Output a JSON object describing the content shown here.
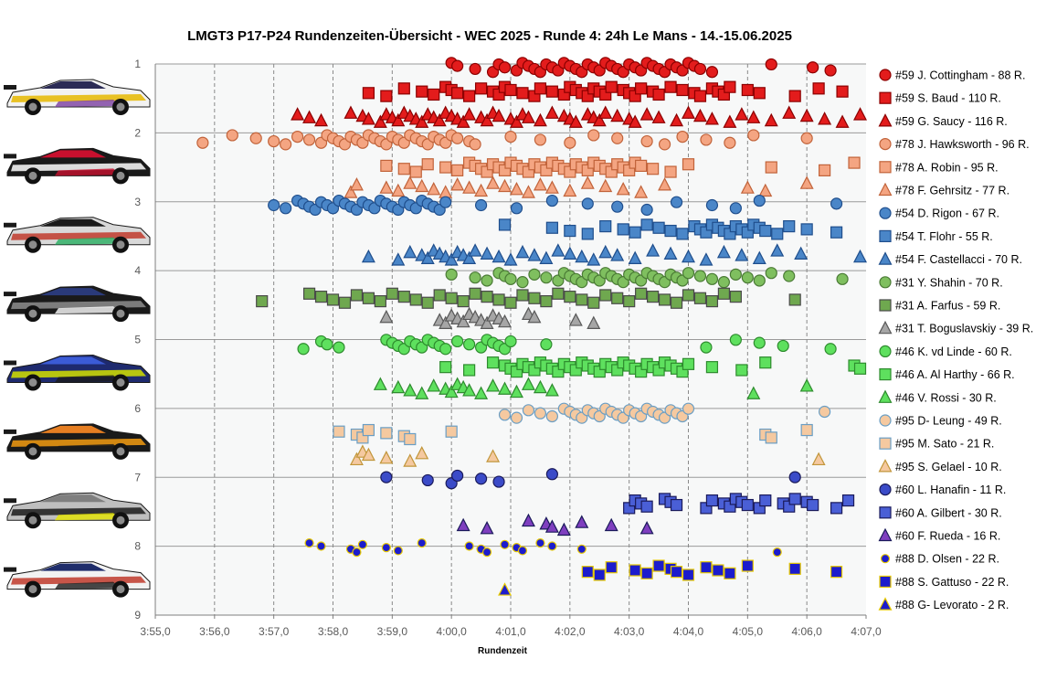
{
  "chart_data": {
    "type": "scatter",
    "title": "LMGT3 P17-P24 Rundenzeiten-Übersicht - WEC 2025 - Runde 4: 24h Le Mans - 14.-15.06.2025",
    "xlabel": "Rundenzeit",
    "ylabel": "",
    "x_tick_labels": [
      "3:55,0",
      "3:56,0",
      "3:57,0",
      "3:58,0",
      "3:59,0",
      "4:00,0",
      "4:01,0",
      "4:02,0",
      "4:03,0",
      "4:04,0",
      "4:05,0",
      "4:06,0",
      "4:07,0"
    ],
    "x_unit": "seconds",
    "xlim": [
      235,
      247
    ],
    "ylim": [
      1,
      9
    ],
    "y_ticks": [
      1,
      2,
      3,
      4,
      5,
      6,
      7,
      8,
      9
    ],
    "grid": {
      "vertical": "dashed",
      "horizontal": "solid"
    },
    "legend_position": "right",
    "cars": [
      {
        "number": "#59",
        "livery": [
          "#f2f2f2",
          "#2b2b55",
          "#e6b800",
          "#7a3fa0"
        ]
      },
      {
        "number": "#78",
        "livery": [
          "#1a1a1a",
          "#c8102e",
          "#ffffff",
          "#c8102e"
        ]
      },
      {
        "number": "#54",
        "livery": [
          "#d9d9d9",
          "#1a1a1a",
          "#c0392b",
          "#27ae60"
        ]
      },
      {
        "number": "#31",
        "livery": [
          "#1a1a1a",
          "#2a3a7a",
          "#8e8e8e",
          "#ffffff"
        ]
      },
      {
        "number": "#46",
        "livery": [
          "#1e2a6e",
          "#3b5bd6",
          "#d4e000",
          "#1a1a1a"
        ]
      },
      {
        "number": "#95",
        "livery": [
          "#1a1a1a",
          "#e67e22",
          "#f39c12",
          "#1a1a1a"
        ]
      },
      {
        "number": "#60",
        "livery": [
          "#bfbfbf",
          "#7f7f7f",
          "#1a1a1a",
          "#e6e600"
        ]
      },
      {
        "number": "#88",
        "livery": [
          "#f2f2f2",
          "#1f2d6b",
          "#c0392b",
          "#1a1a1a"
        ]
      }
    ],
    "series": [
      {
        "name": "#59 J. Cottingham - 88 R.",
        "marker": "circle",
        "fill": "#e31c1c",
        "stroke": "#8b0000",
        "y": 1.05,
        "x": [
          240.0,
          240.1,
          240.4,
          240.7,
          240.8,
          240.9,
          241.1,
          241.2,
          241.3,
          241.4,
          241.5,
          241.6,
          241.7,
          241.8,
          241.9,
          242.0,
          242.1,
          242.2,
          242.3,
          242.4,
          242.5,
          242.6,
          242.7,
          242.8,
          242.9,
          243.0,
          243.1,
          243.2,
          243.3,
          243.4,
          243.5,
          243.6,
          243.7,
          243.8,
          243.9,
          244.0,
          244.1,
          244.2,
          244.4,
          245.4,
          246.1,
          246.4
        ]
      },
      {
        "name": "#59 S. Baud - 110 R.",
        "marker": "square",
        "fill": "#e31c1c",
        "stroke": "#8b0000",
        "y": 1.4,
        "x": [
          238.6,
          238.9,
          239.2,
          239.5,
          239.7,
          239.9,
          240.0,
          240.1,
          240.3,
          240.5,
          240.7,
          240.8,
          240.9,
          241.0,
          241.2,
          241.4,
          241.5,
          241.7,
          241.9,
          242.0,
          242.1,
          242.2,
          242.3,
          242.4,
          242.5,
          242.6,
          242.7,
          242.9,
          243.0,
          243.1,
          243.2,
          243.4,
          243.5,
          243.7,
          243.9,
          244.1,
          244.2,
          244.4,
          244.5,
          244.6,
          244.7,
          245.0,
          245.2,
          245.8,
          246.2,
          246.6
        ]
      },
      {
        "name": "#59 G. Saucy - 116 R.",
        "marker": "triangle",
        "fill": "#e31c1c",
        "stroke": "#8b0000",
        "y": 1.78,
        "x": [
          237.4,
          237.6,
          237.8,
          238.3,
          238.5,
          238.6,
          238.8,
          238.9,
          239.0,
          239.1,
          239.2,
          239.3,
          239.4,
          239.5,
          239.6,
          239.7,
          239.8,
          239.9,
          240.0,
          240.1,
          240.2,
          240.3,
          240.5,
          240.6,
          240.7,
          240.8,
          241.0,
          241.1,
          241.2,
          241.3,
          241.5,
          241.7,
          241.9,
          242.0,
          242.1,
          242.3,
          242.4,
          242.5,
          242.6,
          242.8,
          243.0,
          243.1,
          243.3,
          243.5,
          243.8,
          244.0,
          244.2,
          244.4,
          244.7,
          244.9,
          245.1,
          245.4,
          245.7,
          246.0,
          246.3,
          246.6,
          246.9
        ]
      },
      {
        "name": "#78 J. Hawksworth - 96 R.",
        "marker": "circle",
        "fill": "#f4a582",
        "stroke": "#c1633a",
        "y": 2.1,
        "x": [
          235.8,
          236.3,
          236.7,
          237.0,
          237.2,
          237.4,
          237.6,
          237.8,
          237.9,
          238.0,
          238.1,
          238.2,
          238.3,
          238.4,
          238.5,
          238.6,
          238.7,
          238.8,
          238.9,
          239.0,
          239.1,
          239.2,
          239.3,
          239.4,
          239.5,
          239.6,
          239.7,
          239.8,
          239.9,
          240.0,
          240.1,
          240.3,
          240.4,
          241.0,
          241.5,
          242.0,
          242.4,
          242.8,
          243.3,
          243.6,
          243.9,
          244.3,
          244.7,
          245.1,
          246.0
        ]
      },
      {
        "name": "#78 A. Robin - 95 R.",
        "marker": "square",
        "fill": "#f4a582",
        "stroke": "#c1633a",
        "y": 2.5,
        "x": [
          238.9,
          239.2,
          239.4,
          239.6,
          239.9,
          240.1,
          240.3,
          240.4,
          240.5,
          240.6,
          240.7,
          240.8,
          240.9,
          241.0,
          241.1,
          241.2,
          241.3,
          241.4,
          241.5,
          241.6,
          241.7,
          241.8,
          241.9,
          242.0,
          242.1,
          242.2,
          242.3,
          242.4,
          242.5,
          242.6,
          242.7,
          242.8,
          242.9,
          243.0,
          243.1,
          243.2,
          243.4,
          243.7,
          244.0,
          245.4,
          246.3,
          246.8
        ]
      },
      {
        "name": "#78 F. Gehrsitz - 77 R.",
        "marker": "triangle",
        "fill": "#f4a582",
        "stroke": "#c1633a",
        "y": 2.8,
        "x": [
          238.3,
          238.4,
          238.9,
          239.1,
          239.3,
          239.5,
          239.7,
          239.9,
          240.1,
          240.3,
          240.5,
          240.7,
          240.9,
          241.1,
          241.3,
          241.5,
          241.7,
          242.0,
          242.3,
          242.6,
          242.9,
          243.2,
          243.6,
          245.0,
          245.3,
          246.0
        ]
      },
      {
        "name": "#54 D. Rigon - 67 R.",
        "marker": "circle",
        "fill": "#4a86c8",
        "stroke": "#1f4e8c",
        "y": 3.05,
        "x": [
          237.0,
          237.2,
          237.4,
          237.5,
          237.6,
          237.7,
          237.8,
          237.9,
          238.0,
          238.1,
          238.2,
          238.3,
          238.4,
          238.5,
          238.6,
          238.7,
          238.8,
          238.9,
          239.0,
          239.1,
          239.2,
          239.3,
          239.4,
          239.5,
          239.6,
          239.7,
          239.8,
          239.9,
          240.5,
          241.1,
          241.7,
          242.3,
          242.8,
          243.3,
          243.8,
          244.4,
          244.8,
          245.2,
          246.5
        ]
      },
      {
        "name": "#54 T. Flohr - 55 R.",
        "marker": "square",
        "fill": "#4a86c8",
        "stroke": "#1f4e8c",
        "y": 3.4,
        "x": [
          240.9,
          241.7,
          242.0,
          242.3,
          242.6,
          242.9,
          243.1,
          243.3,
          243.5,
          243.7,
          243.9,
          244.1,
          244.2,
          244.3,
          244.4,
          244.5,
          244.6,
          244.7,
          244.8,
          244.9,
          245.0,
          245.1,
          245.2,
          245.3,
          245.5,
          245.7,
          246.0,
          246.5
        ]
      },
      {
        "name": "#54 F. Castellacci - 70 R.",
        "marker": "triangle",
        "fill": "#4a86c8",
        "stroke": "#1f4e8c",
        "y": 3.78,
        "x": [
          238.6,
          239.1,
          239.3,
          239.5,
          239.6,
          239.7,
          239.8,
          239.9,
          240.0,
          240.1,
          240.2,
          240.3,
          240.4,
          240.6,
          240.8,
          241.0,
          241.2,
          241.4,
          241.6,
          241.8,
          242.0,
          242.2,
          242.4,
          242.6,
          242.8,
          243.1,
          243.4,
          243.7,
          244.0,
          244.3,
          244.6,
          244.9,
          245.2,
          245.5,
          245.9,
          246.9
        ]
      },
      {
        "name": "#31 Y. Shahin - 70 R.",
        "marker": "circle",
        "fill": "#7fbf5f",
        "stroke": "#4a7a35",
        "y": 4.1,
        "x": [
          240.0,
          240.4,
          240.6,
          240.8,
          240.9,
          241.0,
          241.2,
          241.4,
          241.6,
          241.8,
          241.9,
          242.0,
          242.1,
          242.2,
          242.3,
          242.4,
          242.5,
          242.6,
          242.7,
          242.8,
          242.9,
          243.0,
          243.1,
          243.2,
          243.3,
          243.4,
          243.5,
          243.6,
          243.7,
          243.8,
          243.9,
          244.0,
          244.2,
          244.4,
          244.6,
          244.8,
          245.0,
          245.2,
          245.4,
          245.7,
          246.6
        ]
      },
      {
        "name": "#31 A. Farfus - 59 R.",
        "marker": "square",
        "fill": "#6fa84f",
        "stroke": "#4a4a4a",
        "y": 4.4,
        "x": [
          236.8,
          237.6,
          237.8,
          238.0,
          238.2,
          238.4,
          238.6,
          238.8,
          239.0,
          239.2,
          239.4,
          239.6,
          239.8,
          240.0,
          240.2,
          240.4,
          240.6,
          240.8,
          241.0,
          241.2,
          241.4,
          241.6,
          241.8,
          242.0,
          242.2,
          242.4,
          242.6,
          242.8,
          243.0,
          243.2,
          243.4,
          243.6,
          243.8,
          244.0,
          244.2,
          244.4,
          244.6,
          244.8,
          245.8
        ]
      },
      {
        "name": "#31 T. Boguslavskiy - 39 R.",
        "marker": "triangle",
        "fill": "#a6a6a6",
        "stroke": "#595959",
        "y": 4.7,
        "x": [
          238.9,
          239.8,
          239.9,
          240.0,
          240.1,
          240.2,
          240.3,
          240.4,
          240.5,
          240.6,
          240.7,
          240.8,
          240.9,
          241.3,
          241.4,
          242.1,
          242.4
        ]
      },
      {
        "name": "#46 K. vd Linde - 60 R.",
        "marker": "circle",
        "fill": "#5ee05e",
        "stroke": "#2e8b2e",
        "y": 5.07,
        "x": [
          237.5,
          237.8,
          237.9,
          238.1,
          238.9,
          239.0,
          239.1,
          239.2,
          239.3,
          239.4,
          239.5,
          239.6,
          239.7,
          239.8,
          239.9,
          240.1,
          240.3,
          240.5,
          240.6,
          240.7,
          240.8,
          240.9,
          241.0,
          241.6,
          244.3,
          244.8,
          245.2,
          245.6,
          246.4
        ]
      },
      {
        "name": "#46 A. Al Harthy - 66 R.",
        "marker": "square",
        "fill": "#5ee05e",
        "stroke": "#2e8b2e",
        "y": 5.4,
        "x": [
          239.9,
          240.3,
          240.7,
          240.9,
          241.0,
          241.1,
          241.2,
          241.3,
          241.4,
          241.5,
          241.6,
          241.7,
          241.8,
          241.9,
          242.0,
          242.1,
          242.2,
          242.3,
          242.4,
          242.5,
          242.6,
          242.7,
          242.8,
          242.9,
          243.0,
          243.1,
          243.2,
          243.3,
          243.4,
          243.5,
          243.6,
          243.7,
          243.8,
          243.9,
          244.0,
          244.4,
          244.9,
          245.3,
          246.8,
          246.9
        ]
      },
      {
        "name": "#46 V. Rossi - 30 R.",
        "marker": "triangle",
        "fill": "#5ee05e",
        "stroke": "#2e8b2e",
        "y": 5.72,
        "x": [
          238.8,
          239.1,
          239.3,
          239.5,
          239.7,
          239.9,
          240.0,
          240.1,
          240.2,
          240.3,
          240.5,
          240.7,
          240.9,
          241.1,
          241.3,
          241.5,
          241.7,
          245.1,
          246.0
        ]
      },
      {
        "name": "#95 D- Leung - 49 R.",
        "marker": "circle",
        "fill": "#f5c9a0",
        "stroke": "#6a9ec4",
        "y": 6.07,
        "x": [
          240.9,
          241.1,
          241.3,
          241.5,
          241.7,
          241.9,
          242.0,
          242.1,
          242.2,
          242.3,
          242.4,
          242.5,
          242.6,
          242.7,
          242.8,
          242.9,
          243.0,
          243.1,
          243.2,
          243.3,
          243.4,
          243.5,
          243.6,
          243.7,
          243.8,
          243.9,
          244.0,
          246.3
        ]
      },
      {
        "name": "#95 M. Sato - 21 R.",
        "marker": "square",
        "fill": "#f5c9a0",
        "stroke": "#6a9ec4",
        "y": 6.38,
        "x": [
          238.1,
          238.4,
          238.5,
          238.6,
          238.9,
          239.2,
          239.3,
          240.0,
          245.3,
          245.4,
          246.0
        ]
      },
      {
        "name": "#95 S. Gelael - 10 R.",
        "marker": "triangle",
        "fill": "#f5c9a0",
        "stroke": "#c1963a",
        "y": 6.7,
        "x": [
          238.4,
          238.5,
          238.6,
          238.9,
          239.3,
          239.5,
          240.7,
          246.2
        ]
      },
      {
        "name": "#60 L. Hanafin - 11 R.",
        "marker": "circle",
        "fill": "#3b4bc8",
        "stroke": "#1a1a5a",
        "y": 7.02,
        "x": [
          238.9,
          239.6,
          240.0,
          240.1,
          240.5,
          240.8,
          241.7,
          245.8
        ]
      },
      {
        "name": "#60 A. Gilbert - 30 R.",
        "marker": "square",
        "fill": "#4a5fd6",
        "stroke": "#1a1a5a",
        "y": 7.38,
        "x": [
          243.0,
          243.1,
          243.2,
          243.3,
          243.6,
          243.7,
          243.8,
          244.3,
          244.4,
          244.6,
          244.7,
          244.8,
          244.9,
          245.0,
          245.2,
          245.3,
          245.6,
          245.7,
          245.8,
          246.0,
          246.1,
          246.5,
          246.7
        ]
      },
      {
        "name": "#60 F. Rueda - 16 R.",
        "marker": "triangle",
        "fill": "#7f3fbf",
        "stroke": "#1a1a5a",
        "y": 7.7,
        "x": [
          240.2,
          240.6,
          241.3,
          241.6,
          241.7,
          241.9,
          242.2,
          242.7,
          243.3
        ]
      },
      {
        "name": "#88 D. Olsen - 22 R.",
        "marker": "dot",
        "fill": "#1c1ccc",
        "stroke": "#e6c800",
        "y": 8.02,
        "x": [
          237.6,
          237.8,
          238.3,
          238.4,
          238.5,
          238.9,
          239.1,
          239.5,
          240.3,
          240.5,
          240.6,
          240.9,
          241.1,
          241.2,
          241.5,
          241.7,
          242.2,
          245.5
        ]
      },
      {
        "name": "#88 S. Gattuso - 22 R.",
        "marker": "square",
        "fill": "#1c1ccc",
        "stroke": "#e6c800",
        "y": 8.35,
        "x": [
          242.3,
          242.5,
          242.7,
          243.1,
          243.3,
          243.5,
          243.7,
          243.8,
          244.0,
          244.3,
          244.5,
          244.7,
          245.0,
          245.8,
          246.5
        ]
      },
      {
        "name": "#88 G- Levorato - 2 R.",
        "marker": "triangle",
        "fill": "#1c1ccc",
        "stroke": "#e6c800",
        "y": 8.68,
        "x": [
          240.9
        ]
      }
    ]
  }
}
